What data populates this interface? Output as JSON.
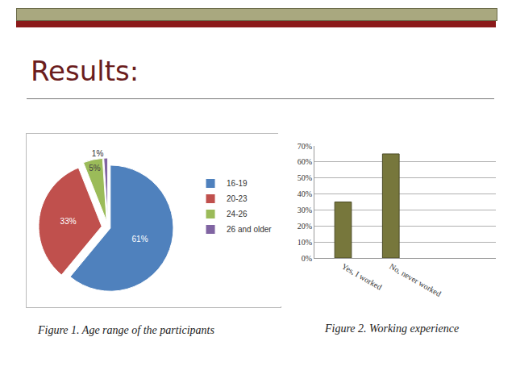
{
  "heading": "Results:",
  "chart_data": [
    {
      "type": "pie",
      "title": "Figure 1. Age range of the participants",
      "categories": [
        "16-19",
        "20-23",
        "24-26",
        "26 and older"
      ],
      "values": [
        61,
        33,
        5,
        1
      ],
      "value_labels": [
        "61%",
        "33%",
        "5%",
        "1%"
      ],
      "colors": [
        "#4f81bd",
        "#c0504d",
        "#9bbb59",
        "#8064a2"
      ],
      "data_labels": true,
      "legend": "right"
    },
    {
      "type": "bar",
      "title": "Figure 2. Working experience",
      "categories": [
        "Yes, I worked",
        "No, never worked"
      ],
      "values": [
        35,
        65
      ],
      "color": "#77773c",
      "ylim": [
        0,
        70
      ],
      "yticks": [
        {
          "value": 0,
          "label": "0%"
        },
        {
          "value": 10,
          "label": "10%"
        },
        {
          "value": 20,
          "label": "20%"
        },
        {
          "value": 30,
          "label": "30%"
        },
        {
          "value": 40,
          "label": "40%"
        },
        {
          "value": 50,
          "label": "50%"
        },
        {
          "value": 60,
          "label": "60%"
        },
        {
          "value": 70,
          "label": "70%"
        }
      ],
      "grid": true
    }
  ]
}
